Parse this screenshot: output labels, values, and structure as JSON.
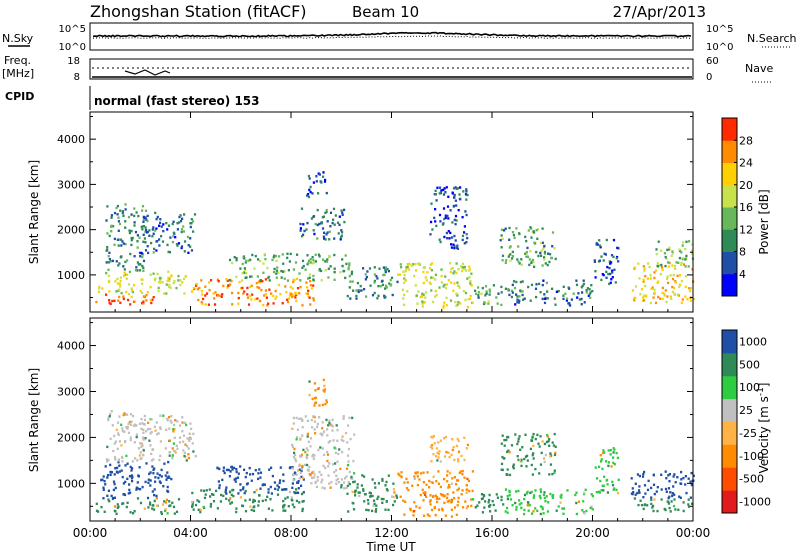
{
  "header": {
    "title": "Zhongshan Station (fitACF)",
    "beam": "Beam 10",
    "date": "27/Apr/2013"
  },
  "top_panels": {
    "nsky_label": "N.Sky",
    "nsearch_label": "N.Search",
    "freq_label_1": "Freq.",
    "freq_label_2": "[MHz]",
    "nave_label": "Nave",
    "cpid_label": "CPID",
    "cpid_text": "normal (fast stereo) 153",
    "noise_ticks_left": [
      "10^5",
      "10^0"
    ],
    "noise_ticks_right": [
      "10^5",
      "10^0"
    ],
    "freq_ticks": [
      "18",
      "8"
    ],
    "nave_ticks": [
      "60",
      "0"
    ]
  },
  "colors": {
    "power": [
      "#0000ff",
      "#1f4fa6",
      "#2e8b57",
      "#66b85a",
      "#c7e24a",
      "#ffd000",
      "#ff8c00",
      "#ff2a00"
    ],
    "velocity": [
      "#e31a1c",
      "#ff4d00",
      "#ff8c00",
      "#ffb347",
      "#c0c0c0",
      "#2ecc40",
      "#2e8b57",
      "#1f4fa6"
    ]
  },
  "chart_data": [
    {
      "type": "heatmap",
      "panel": "power",
      "xlabel": "Time UT",
      "ylabel": "Slant Range [km]",
      "x_ticks": [
        "00:00",
        "04:00",
        "08:00",
        "12:00",
        "16:00",
        "20:00",
        "00:00"
      ],
      "xlim_hours": [
        0,
        24
      ],
      "ylim": [
        180,
        4600
      ],
      "y_ticks": [
        1000,
        2000,
        3000,
        4000
      ],
      "colorbar_label": "Power [dB]",
      "colorbar_ticks": [
        4,
        8,
        12,
        16,
        20,
        24,
        28
      ],
      "colorbar_range": [
        0,
        32
      ],
      "blobs": [
        {
          "t0": 0.2,
          "t1": 2.5,
          "r0": 350,
          "r1": 620,
          "level": 28
        },
        {
          "t0": 0.3,
          "t1": 3.8,
          "r0": 600,
          "r1": 1100,
          "level": 18
        },
        {
          "t0": 0.6,
          "t1": 2.2,
          "r0": 1100,
          "r1": 2600,
          "level": 10
        },
        {
          "t0": 2.0,
          "t1": 4.2,
          "r0": 1500,
          "r1": 2400,
          "level": 8
        },
        {
          "t0": 4.0,
          "t1": 9.0,
          "r0": 350,
          "r1": 950,
          "level": 26
        },
        {
          "t0": 5.5,
          "t1": 10.3,
          "r0": 900,
          "r1": 1500,
          "level": 13
        },
        {
          "t0": 8.3,
          "t1": 10.2,
          "r0": 1800,
          "r1": 2500,
          "level": 8
        },
        {
          "t0": 8.6,
          "t1": 9.4,
          "r0": 2700,
          "r1": 3300,
          "level": 6
        },
        {
          "t0": 10.2,
          "t1": 12.2,
          "r0": 500,
          "r1": 1200,
          "level": 10
        },
        {
          "t0": 12.2,
          "t1": 15.2,
          "r0": 300,
          "r1": 1300,
          "level": 18
        },
        {
          "t0": 13.5,
          "t1": 15.0,
          "r0": 1600,
          "r1": 3000,
          "level": 6
        },
        {
          "t0": 15.2,
          "t1": 16.5,
          "r0": 350,
          "r1": 800,
          "level": 12
        },
        {
          "t0": 16.3,
          "t1": 18.5,
          "r0": 1200,
          "r1": 2100,
          "level": 12
        },
        {
          "t0": 16.5,
          "t1": 20.0,
          "r0": 350,
          "r1": 900,
          "level": 8
        },
        {
          "t0": 20.0,
          "t1": 21.0,
          "r0": 800,
          "r1": 1800,
          "level": 6
        },
        {
          "t0": 21.5,
          "t1": 24.0,
          "r0": 400,
          "r1": 1300,
          "level": 22
        },
        {
          "t0": 22.5,
          "t1": 24.0,
          "r0": 1200,
          "r1": 1800,
          "level": 14
        }
      ]
    },
    {
      "type": "heatmap",
      "panel": "velocity",
      "xlabel": "Time UT",
      "ylabel": "Slant Range [km]",
      "x_ticks": [
        "00:00",
        "04:00",
        "08:00",
        "12:00",
        "16:00",
        "20:00",
        "00:00"
      ],
      "xlim_hours": [
        0,
        24
      ],
      "ylim": [
        180,
        4600
      ],
      "y_ticks": [
        1000,
        2000,
        3000,
        4000
      ],
      "colorbar_label": "Velocity [m s^-1]",
      "colorbar_ticks": [
        "1000",
        "500",
        "100",
        "25",
        "-25",
        "-100",
        "-500",
        "-1000"
      ],
      "blobs": [
        {
          "t0": 0.2,
          "t1": 3.5,
          "r0": 350,
          "r1": 700,
          "vel": 100
        },
        {
          "t0": 0.4,
          "t1": 3.2,
          "r0": 700,
          "r1": 1500,
          "vel": 1000
        },
        {
          "t0": 0.6,
          "t1": 2.2,
          "r0": 1500,
          "r1": 2600,
          "vel": 0
        },
        {
          "t0": 2.0,
          "t1": 4.2,
          "r0": 1500,
          "r1": 2500,
          "vel": 0
        },
        {
          "t0": 4.0,
          "t1": 8.5,
          "r0": 400,
          "r1": 900,
          "vel": 100
        },
        {
          "t0": 5.0,
          "t1": 8.5,
          "r0": 800,
          "r1": 1400,
          "vel": 1000
        },
        {
          "t0": 8.0,
          "t1": 10.5,
          "r0": 900,
          "r1": 2500,
          "vel": 0
        },
        {
          "t0": 8.6,
          "t1": 9.4,
          "r0": 2700,
          "r1": 3300,
          "vel": -100
        },
        {
          "t0": 10.2,
          "t1": 12.2,
          "r0": 400,
          "r1": 1200,
          "vel": 100
        },
        {
          "t0": 12.2,
          "t1": 15.2,
          "r0": 300,
          "r1": 1300,
          "vel": -300
        },
        {
          "t0": 13.5,
          "t1": 15.0,
          "r0": 1500,
          "r1": 2100,
          "vel": -50
        },
        {
          "t0": 15.2,
          "t1": 16.5,
          "r0": 350,
          "r1": 800,
          "vel": 100
        },
        {
          "t0": 16.3,
          "t1": 18.5,
          "r0": 1200,
          "r1": 2100,
          "vel": 100
        },
        {
          "t0": 16.5,
          "t1": 20.0,
          "r0": 350,
          "r1": 900,
          "vel": 80
        },
        {
          "t0": 20.0,
          "t1": 21.0,
          "r0": 800,
          "r1": 1800,
          "vel": 60
        },
        {
          "t0": 21.5,
          "t1": 24.0,
          "r0": 700,
          "r1": 1300,
          "vel": 1000
        },
        {
          "t0": 21.5,
          "t1": 24.0,
          "r0": 400,
          "r1": 700,
          "vel": 100
        }
      ]
    }
  ]
}
